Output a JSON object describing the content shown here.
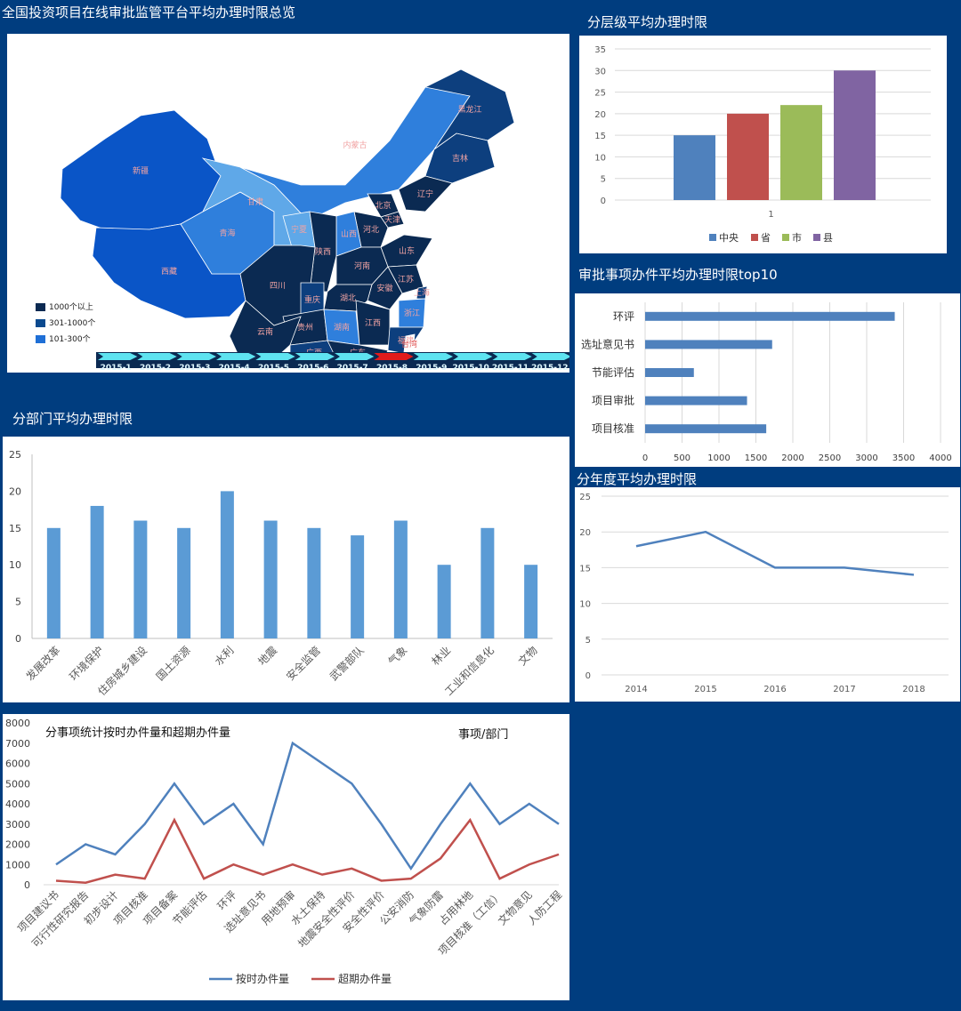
{
  "map": {
    "title": "全国投资项目在线审批监管平台平均办理时限总览",
    "legend": [
      "1000个以上",
      "301-1000个",
      "101-300个"
    ],
    "legend_colors": [
      "#0b2a52",
      "#0b4a8f",
      "#1f6fd6"
    ],
    "regions": [
      {
        "name": "新疆",
        "tone": "#0a55c7"
      },
      {
        "name": "西藏",
        "tone": "#0a55c7"
      },
      {
        "name": "青海",
        "tone": "#2f7fdc"
      },
      {
        "name": "甘肃",
        "tone": "#5fa8e8"
      },
      {
        "name": "内蒙古",
        "tone": "#2f7fdc"
      },
      {
        "name": "黑龙江",
        "tone": "#0d3f7e"
      },
      {
        "name": "吉林",
        "tone": "#0d3f7e"
      },
      {
        "name": "辽宁",
        "tone": "#0b2a52"
      },
      {
        "name": "北京",
        "tone": "#0b2a52"
      },
      {
        "name": "天津",
        "tone": "#0b2a52"
      },
      {
        "name": "河北",
        "tone": "#0b2a52"
      },
      {
        "name": "山西",
        "tone": "#2f7fdc"
      },
      {
        "name": "宁夏",
        "tone": "#5fa8e8"
      },
      {
        "name": "陕西",
        "tone": "#0b2a52"
      },
      {
        "name": "山东",
        "tone": "#0b2a52"
      },
      {
        "name": "河南",
        "tone": "#0b2a52"
      },
      {
        "name": "江苏",
        "tone": "#0b2a52"
      },
      {
        "name": "安徽",
        "tone": "#0b2a52"
      },
      {
        "name": "上海",
        "tone": "#0d3f7e"
      },
      {
        "name": "湖北",
        "tone": "#0b2a52"
      },
      {
        "name": "四川",
        "tone": "#0b2a52"
      },
      {
        "name": "重庆",
        "tone": "#0d3f7e"
      },
      {
        "name": "浙江",
        "tone": "#2f7fdc"
      },
      {
        "name": "贵州",
        "tone": "#0b2a52"
      },
      {
        "name": "湖南",
        "tone": "#2f7fdc"
      },
      {
        "name": "江西",
        "tone": "#0b2a52"
      },
      {
        "name": "福建",
        "tone": "#0d3f7e"
      },
      {
        "name": "云南",
        "tone": "#0b2a52"
      },
      {
        "name": "广西",
        "tone": "#0d3f7e"
      },
      {
        "name": "广东",
        "tone": "#0b2a52"
      },
      {
        "name": "台湾",
        "tone": "#ffffff"
      }
    ],
    "timeline": {
      "items": [
        "2015-1",
        "2015-2",
        "2015-3",
        "2015-4",
        "2015-5",
        "2015-6",
        "2015-7",
        "2015-8",
        "2015-9",
        "2015-10",
        "2015-11",
        "2015-12"
      ],
      "active": "2015-8",
      "active_color": "#e11b1b",
      "arrow_color": "#5ee3f0"
    }
  },
  "chart_data": [
    {
      "id": "level",
      "type": "bar",
      "title": "分层级平均办理时限",
      "categories": [
        "1"
      ],
      "series": [
        {
          "name": "中央",
          "values": [
            15
          ],
          "color": "#4f81bd"
        },
        {
          "name": "省",
          "values": [
            20
          ],
          "color": "#c0504d"
        },
        {
          "name": "市",
          "values": [
            22
          ],
          "color": "#9bbb59"
        },
        {
          "name": "县",
          "values": [
            30
          ],
          "color": "#8064a2"
        }
      ],
      "ylim": [
        0,
        35
      ],
      "yticks": [
        0,
        5,
        10,
        15,
        20,
        25,
        30,
        35
      ],
      "grid": true,
      "legend": "bottom"
    },
    {
      "id": "top10",
      "type": "bar",
      "orientation": "horizontal",
      "title": "审批事项办件平均办理时限top10",
      "categories": [
        "环评",
        "选址意见书",
        "节能评估",
        "项目审批",
        "项目核准"
      ],
      "values": [
        3380,
        1720,
        660,
        1380,
        1640
      ],
      "color": "#4f81bd",
      "xlim": [
        0,
        4000
      ],
      "xticks": [
        0,
        500,
        1000,
        1500,
        2000,
        2500,
        3000,
        3500,
        4000
      ],
      "grid": true
    },
    {
      "id": "dept",
      "type": "bar",
      "title": "分部门平均办理时限",
      "categories": [
        "发展改革",
        "环境保护",
        "住房城乡建设",
        "国土资源",
        "水利",
        "地震",
        "安全监管",
        "武警部队",
        "气象",
        "林业",
        "工业和信息化",
        "文物"
      ],
      "values": [
        15,
        18,
        16,
        15,
        20,
        16,
        15,
        14,
        16,
        10,
        15,
        10
      ],
      "color": "#5b9bd5",
      "ylim": [
        0,
        25
      ],
      "yticks": [
        0,
        5,
        10,
        15,
        20,
        25
      ]
    },
    {
      "id": "year",
      "type": "line",
      "title": "分年度平均办理时限",
      "x": [
        "2014",
        "2015",
        "2016",
        "2017",
        "2018"
      ],
      "values": [
        18,
        20,
        15,
        15,
        14
      ],
      "color": "#4f81bd",
      "ylim": [
        0,
        25
      ],
      "yticks": [
        0,
        5,
        10,
        15,
        20,
        25
      ],
      "grid": true
    },
    {
      "id": "items",
      "type": "line",
      "title": "分事项统计按时办件量和超期办件量",
      "annotation": "事项/部门",
      "categories": [
        "项目建议书",
        "可行性研究报告",
        "初步设计",
        "项目核准",
        "项目备案",
        "节能评估",
        "环评",
        "选址意见书",
        "用地预审",
        "水土保持",
        "地震安全性评价",
        "安全性评价",
        "公安消防",
        "气象防雷",
        "占用林地",
        "项目核准（工信）",
        "文物意见",
        "人防工程"
      ],
      "series": [
        {
          "name": "按时办件量",
          "color": "#4f81bd",
          "values": [
            1000,
            2000,
            1500,
            3000,
            5000,
            3000,
            4000,
            2000,
            7000,
            6000,
            5000,
            3000,
            800,
            3000,
            5000,
            3000,
            4000,
            3000
          ]
        },
        {
          "name": "超期办件量",
          "color": "#c0504d",
          "values": [
            200,
            100,
            500,
            300,
            3200,
            300,
            1000,
            500,
            1000,
            500,
            800,
            200,
            300,
            1300,
            3200,
            300,
            1000,
            1500
          ]
        }
      ],
      "ylim": [
        0,
        8000
      ],
      "yticks": [
        0,
        1000,
        2000,
        3000,
        4000,
        5000,
        6000,
        7000,
        8000
      ],
      "legend": "bottom"
    }
  ]
}
